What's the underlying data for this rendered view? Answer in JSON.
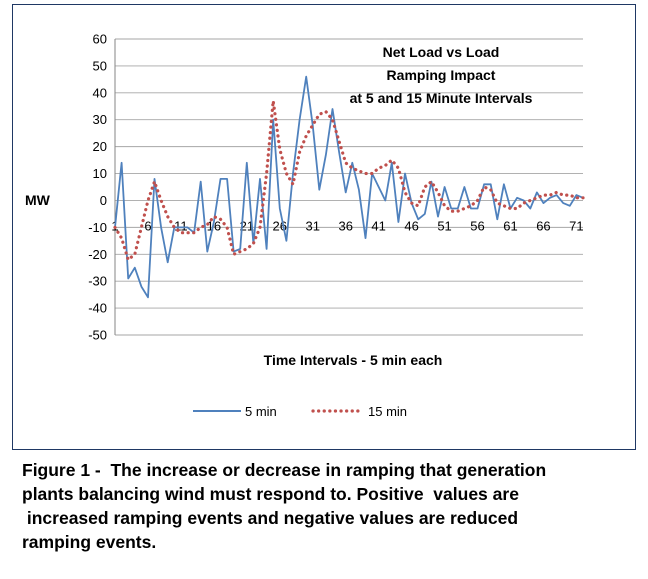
{
  "chart_data": {
    "type": "line",
    "title": [
      "Net Load vs Load",
      "Ramping Impact",
      "at 5 and 15 Minute Intervals"
    ],
    "xlabel": "Time Intervals - 5 min each",
    "ylabel": "MW",
    "ylim": [
      -50,
      60
    ],
    "yticks": [
      60,
      50,
      40,
      30,
      20,
      10,
      0,
      -10,
      -20,
      -30,
      -40,
      -50
    ],
    "xticks": [
      1,
      6,
      11,
      16,
      21,
      26,
      31,
      36,
      41,
      46,
      51,
      56,
      61,
      66,
      71
    ],
    "grid": true,
    "legend_position": "bottom",
    "series": [
      {
        "name": "5 min",
        "color": "#4f81bd",
        "style": "solid",
        "x": [
          1,
          2,
          3,
          4,
          5,
          6,
          7,
          8,
          9,
          10,
          11,
          12,
          13,
          14,
          15,
          16,
          17,
          18,
          19,
          20,
          21,
          22,
          23,
          24,
          25,
          26,
          27,
          28,
          29,
          30,
          31,
          32,
          33,
          34,
          35,
          36,
          37,
          38,
          39,
          40,
          41,
          42,
          43,
          44,
          45,
          46,
          47,
          48,
          49,
          50,
          51,
          52,
          53,
          54,
          55,
          56,
          57,
          58,
          59,
          60,
          61,
          62,
          63,
          64,
          65,
          66,
          67,
          68,
          69,
          70,
          71,
          72
        ],
        "values": [
          -10,
          14,
          -29,
          -25,
          -32,
          -36,
          8,
          -10,
          -23,
          -10,
          -10,
          -10,
          -12,
          7,
          -19,
          -8,
          8,
          8,
          -19,
          -18,
          14,
          -16,
          8,
          -18,
          30,
          -3,
          -15,
          10,
          30,
          46,
          28,
          4,
          17,
          34,
          18,
          3,
          14,
          4,
          -14,
          10,
          5,
          0,
          14,
          -8,
          10,
          -1,
          -7,
          -5,
          7,
          -6,
          5,
          -3,
          -3,
          5,
          -3,
          -3,
          6,
          6,
          -7,
          6,
          -3,
          1,
          0,
          -3,
          3,
          -1,
          1,
          2,
          -1,
          -2,
          2,
          1
        ]
      },
      {
        "name": "15 min",
        "color": "#c0504d",
        "style": "dotted",
        "x": [
          1,
          2,
          3,
          4,
          5,
          6,
          7,
          8,
          9,
          10,
          11,
          12,
          13,
          14,
          15,
          16,
          17,
          18,
          19,
          20,
          21,
          22,
          23,
          24,
          25,
          26,
          27,
          28,
          29,
          30,
          31,
          32,
          33,
          34,
          35,
          36,
          37,
          38,
          39,
          40,
          41,
          42,
          43,
          44,
          45,
          46,
          47,
          48,
          49,
          50,
          51,
          52,
          53,
          54,
          55,
          56,
          57,
          58,
          59,
          60,
          61,
          62,
          63,
          64,
          65,
          66,
          67,
          68,
          69,
          70,
          71,
          72
        ],
        "values": [
          -10,
          -14,
          -22,
          -20,
          -10,
          0,
          7,
          0,
          -6,
          -10,
          -12,
          -12,
          -12,
          -10,
          -9,
          -6,
          -7,
          -10,
          -20,
          -19,
          -18,
          -16,
          -10,
          10,
          37,
          19,
          10,
          6,
          18,
          24,
          28,
          32,
          33,
          30,
          22,
          14,
          12,
          11,
          10,
          10,
          12,
          13,
          15,
          12,
          3,
          -1,
          -2,
          5,
          7,
          3,
          -2,
          -4,
          -4,
          -3,
          -2,
          0,
          5,
          4,
          -1,
          -2,
          -3,
          -3,
          -1,
          0,
          1,
          2,
          2,
          3,
          2,
          2,
          1,
          1
        ]
      }
    ]
  },
  "caption": [
    "Figure 1 -  The increase or decrease in ramping that generation",
    "plants balancing wind must respond to. Positive  values are",
    " increased ramping events and negative values are reduced",
    "ramping events."
  ]
}
